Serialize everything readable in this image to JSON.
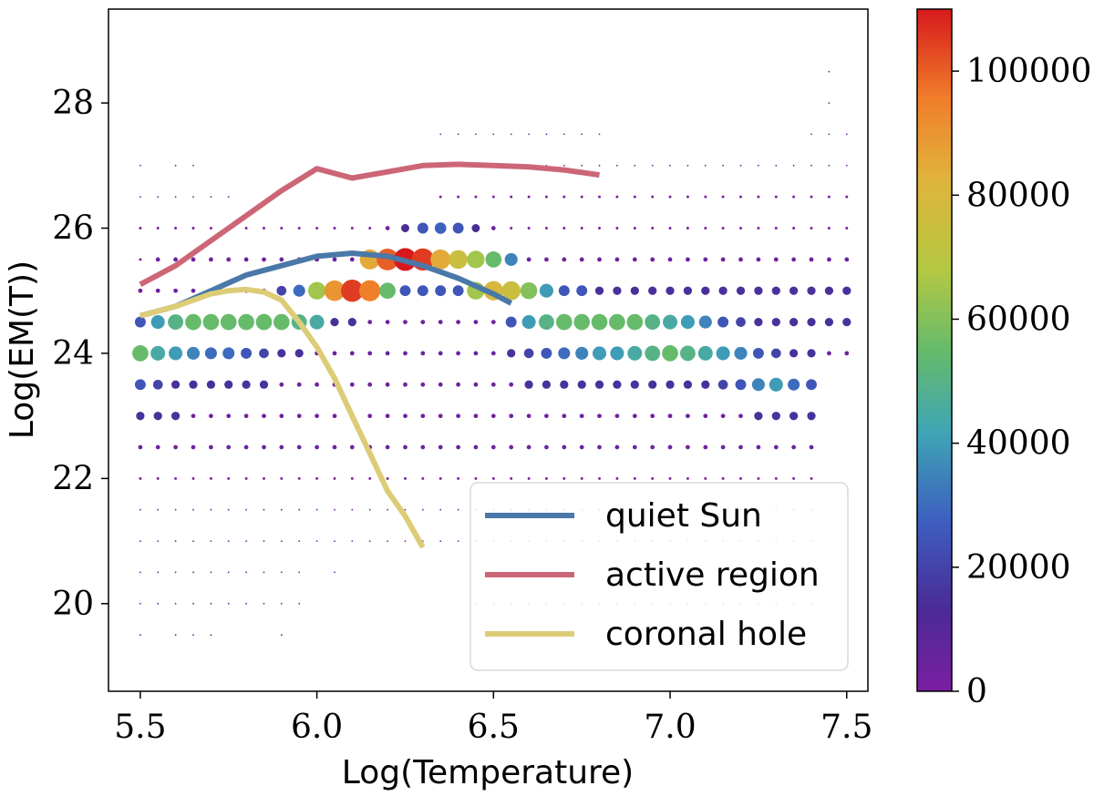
{
  "chart_data": {
    "type": "scatter",
    "title": "",
    "xlabel": "Log(Temperature)",
    "ylabel": "Log(EM(T))",
    "xlim": [
      5.41,
      7.56
    ],
    "ylim": [
      18.6,
      29.5
    ],
    "xticks": [
      5.5,
      6.0,
      6.5,
      7.0,
      7.5
    ],
    "yticks": [
      20,
      22,
      24,
      26,
      28
    ],
    "xtick_labels": [
      "5.5",
      "6.0",
      "6.5",
      "7.0",
      "7.5"
    ],
    "ytick_labels": [
      "20",
      "22",
      "24",
      "26",
      "28"
    ],
    "colorbar": {
      "range": [
        0,
        110000
      ],
      "ticks": [
        0,
        20000,
        40000,
        60000,
        80000,
        100000
      ],
      "tick_labels": [
        "0",
        "20000",
        "40000",
        "60000",
        "80000",
        "100000"
      ],
      "colormap": "Spectral_r"
    },
    "x_grid": [
      5.5,
      5.55,
      5.6,
      5.65,
      5.7,
      5.75,
      5.8,
      5.85,
      5.9,
      5.95,
      6.0,
      6.05,
      6.1,
      6.15,
      6.2,
      6.25,
      6.3,
      6.35,
      6.4,
      6.45,
      6.5,
      6.55,
      6.6,
      6.65,
      6.7,
      6.75,
      6.8,
      6.85,
      6.9,
      6.95,
      7.0,
      7.05,
      7.1,
      7.15,
      7.2,
      7.25,
      7.3,
      7.35,
      7.4,
      7.45,
      7.5
    ],
    "count_rows": [
      {
        "y": 29.0,
        "v": [
          0,
          0,
          0,
          0,
          0,
          0,
          0,
          0,
          0,
          0,
          0,
          0,
          0,
          0,
          0,
          0,
          0,
          0,
          0,
          0,
          0,
          0,
          0,
          0,
          0,
          0,
          0,
          0,
          0,
          0,
          0,
          0,
          0,
          0,
          0,
          0,
          0,
          0,
          0,
          0,
          0
        ]
      },
      {
        "y": 28.5,
        "v": [
          0,
          0,
          0,
          0,
          0,
          0,
          0,
          0,
          0,
          0,
          0,
          0,
          0,
          0,
          0,
          0,
          0,
          0,
          0,
          0,
          0,
          0,
          0,
          0,
          0,
          0,
          0,
          0,
          0,
          0,
          0,
          0,
          0,
          0,
          0,
          0,
          0,
          0,
          0,
          20,
          0
        ]
      },
      {
        "y": 28.0,
        "v": [
          0,
          0,
          0,
          0,
          0,
          0,
          0,
          0,
          0,
          0,
          0,
          0,
          0,
          0,
          0,
          0,
          0,
          0,
          0,
          0,
          0,
          0,
          0,
          0,
          0,
          0,
          0,
          0,
          0,
          0,
          0,
          0,
          0,
          0,
          0,
          0,
          0,
          0,
          0,
          20,
          0
        ]
      },
      {
        "y": 27.5,
        "v": [
          0,
          0,
          0,
          0,
          0,
          0,
          0,
          0,
          0,
          0,
          0,
          0,
          0,
          0,
          0,
          0,
          0,
          20,
          20,
          20,
          20,
          20,
          20,
          20,
          20,
          20,
          20,
          0,
          0,
          0,
          0,
          0,
          0,
          0,
          0,
          0,
          0,
          0,
          20,
          20,
          20
        ]
      },
      {
        "y": 27.0,
        "v": [
          20,
          0,
          20,
          20,
          0,
          0,
          0,
          0,
          0,
          0,
          0,
          0,
          0,
          0,
          0,
          0,
          0,
          150,
          150,
          150,
          150,
          150,
          150,
          150,
          150,
          150,
          150,
          150,
          150,
          150,
          150,
          150,
          150,
          150,
          150,
          150,
          150,
          150,
          150,
          150,
          150
        ]
      },
      {
        "y": 26.5,
        "v": [
          150,
          150,
          150,
          150,
          150,
          20,
          0,
          0,
          0,
          0,
          0,
          0,
          0,
          0,
          0,
          0,
          0,
          1500,
          1500,
          1500,
          1500,
          1500,
          1500,
          1500,
          1500,
          1500,
          1500,
          1500,
          1500,
          1500,
          1500,
          1500,
          1500,
          1500,
          1500,
          1500,
          1500,
          1500,
          1500,
          1500,
          1500
        ]
      },
      {
        "y": 26.0,
        "v": [
          1500,
          1500,
          1500,
          1500,
          1500,
          1500,
          1500,
          1500,
          1500,
          1500,
          1500,
          1500,
          1500,
          1500,
          4000,
          14000,
          25000,
          28000,
          25000,
          14000,
          4000,
          1500,
          1500,
          1500,
          1500,
          1500,
          1500,
          1500,
          1500,
          1500,
          1500,
          1500,
          1500,
          1500,
          1500,
          1500,
          1500,
          1500,
          1500,
          1500,
          1500
        ]
      },
      {
        "y": 25.5,
        "v": [
          1500,
          4000,
          4000,
          4000,
          4000,
          4000,
          4000,
          4000,
          4000,
          4000,
          4000,
          4000,
          4000,
          85000,
          100000,
          110000,
          105000,
          85000,
          75000,
          65000,
          55000,
          35000,
          4000,
          4000,
          4000,
          4000,
          4000,
          4000,
          4000,
          4000,
          4000,
          4000,
          4000,
          4000,
          4000,
          4000,
          4000,
          4000,
          4000,
          4000,
          4000
        ]
      },
      {
        "y": 25.0,
        "v": [
          4000,
          4000,
          4000,
          4000,
          4000,
          4000,
          4000,
          4000,
          20000,
          30000,
          65000,
          90000,
          105000,
          95000,
          55000,
          25000,
          25000,
          25000,
          25000,
          65000,
          80000,
          75000,
          60000,
          40000,
          25000,
          25000,
          15000,
          15000,
          15000,
          15000,
          15000,
          15000,
          15000,
          15000,
          15000,
          15000,
          15000,
          15000,
          15000,
          15000,
          15000
        ]
      },
      {
        "y": 24.5,
        "v": [
          25000,
          40000,
          50000,
          55000,
          55000,
          55000,
          55000,
          55000,
          55000,
          50000,
          45000,
          15000,
          15000,
          4000,
          4000,
          4000,
          4000,
          4000,
          4000,
          4000,
          4000,
          25000,
          40000,
          50000,
          55000,
          55000,
          55000,
          55000,
          55000,
          50000,
          45000,
          40000,
          35000,
          25000,
          20000,
          15000,
          15000,
          15000,
          15000,
          15000,
          15000
        ]
      },
      {
        "y": 24.0,
        "v": [
          55000,
          45000,
          40000,
          35000,
          30000,
          30000,
          25000,
          20000,
          15000,
          15000,
          4000,
          4000,
          4000,
          4000,
          4000,
          4000,
          4000,
          4000,
          4000,
          4000,
          4000,
          15000,
          20000,
          25000,
          30000,
          35000,
          40000,
          40000,
          45000,
          50000,
          55000,
          50000,
          45000,
          40000,
          35000,
          25000,
          20000,
          15000,
          15000,
          4000,
          4000
        ]
      },
      {
        "y": 23.5,
        "v": [
          25000,
          20000,
          15000,
          15000,
          15000,
          15000,
          15000,
          15000,
          4000,
          4000,
          4000,
          4000,
          4000,
          4000,
          4000,
          4000,
          4000,
          4000,
          4000,
          4000,
          4000,
          4000,
          15000,
          15000,
          15000,
          15000,
          15000,
          15000,
          15000,
          15000,
          15000,
          15000,
          15000,
          20000,
          25000,
          35000,
          40000,
          30000,
          25000,
          0,
          0
        ]
      },
      {
        "y": 23.0,
        "v": [
          15000,
          15000,
          15000,
          4000,
          4000,
          4000,
          4000,
          4000,
          4000,
          4000,
          4000,
          4000,
          4000,
          4000,
          4000,
          4000,
          4000,
          4000,
          4000,
          4000,
          4000,
          4000,
          4000,
          4000,
          4000,
          4000,
          4000,
          4000,
          4000,
          4000,
          4000,
          4000,
          4000,
          4000,
          4000,
          15000,
          15000,
          15000,
          15000,
          0,
          0
        ]
      },
      {
        "y": 22.5,
        "v": [
          4000,
          4000,
          4000,
          4000,
          4000,
          4000,
          4000,
          4000,
          4000,
          4000,
          4000,
          4000,
          4000,
          4000,
          4000,
          4000,
          4000,
          4000,
          4000,
          4000,
          4000,
          4000,
          4000,
          4000,
          4000,
          4000,
          4000,
          4000,
          4000,
          4000,
          4000,
          4000,
          4000,
          4000,
          4000,
          4000,
          4000,
          4000,
          4000,
          0,
          0
        ]
      },
      {
        "y": 22.0,
        "v": [
          1500,
          1500,
          1500,
          1500,
          1500,
          1500,
          1500,
          1500,
          1500,
          1500,
          1500,
          1500,
          1500,
          1500,
          1500,
          1500,
          1500,
          1500,
          1500,
          1500,
          1500,
          1500,
          1500,
          1500,
          1500,
          1500,
          1500,
          1500,
          1500,
          1500,
          1500,
          1500,
          1500,
          1500,
          1500,
          1500,
          1500,
          1500,
          1500,
          0,
          0
        ]
      },
      {
        "y": 21.5,
        "v": [
          150,
          150,
          150,
          150,
          150,
          150,
          150,
          150,
          150,
          150,
          150,
          150,
          150,
          150,
          150,
          150,
          150,
          150,
          150,
          150,
          150,
          150,
          150,
          150,
          150,
          150,
          150,
          150,
          150,
          150,
          150,
          150,
          150,
          150,
          150,
          150,
          150,
          150,
          150,
          0,
          0
        ]
      },
      {
        "y": 21.0,
        "v": [
          150,
          150,
          150,
          150,
          150,
          150,
          150,
          150,
          150,
          150,
          150,
          150,
          150,
          150,
          150,
          150,
          150,
          150,
          150,
          150,
          150,
          150,
          150,
          150,
          150,
          150,
          150,
          150,
          150,
          150,
          150,
          150,
          150,
          150,
          150,
          150,
          150,
          150,
          150,
          0,
          0
        ]
      },
      {
        "y": 20.5,
        "v": [
          20,
          20,
          20,
          20,
          20,
          20,
          20,
          20,
          20,
          20,
          0,
          20,
          0,
          0,
          0,
          0,
          0,
          0,
          0,
          0,
          0,
          0,
          0,
          0,
          0,
          0,
          0,
          0,
          0,
          0,
          0,
          0,
          0,
          0,
          0,
          0,
          0,
          0,
          0,
          0,
          0
        ]
      },
      {
        "y": 20.0,
        "v": [
          20,
          20,
          20,
          20,
          20,
          20,
          20,
          20,
          20,
          20,
          0,
          0,
          0,
          0,
          0,
          0,
          0,
          0,
          0,
          20,
          20,
          20,
          20,
          20,
          20,
          20,
          20,
          20,
          20,
          20,
          20,
          20,
          20,
          20,
          20,
          20,
          20,
          20,
          20,
          0,
          0
        ]
      },
      {
        "y": 19.5,
        "v": [
          20,
          0,
          20,
          20,
          20,
          0,
          0,
          0,
          20,
          0,
          0,
          0,
          0,
          0,
          0,
          0,
          0,
          0,
          0,
          0,
          0,
          0,
          0,
          0,
          0,
          0,
          0,
          0,
          0,
          0,
          0,
          0,
          0,
          0,
          0,
          0,
          0,
          0,
          0,
          0,
          0
        ]
      }
    ],
    "series": [
      {
        "name": "quiet Sun",
        "color": "#4a78a8",
        "x": [
          5.5,
          5.6,
          5.7,
          5.8,
          5.9,
          6.0,
          6.1,
          6.2,
          6.3,
          6.4,
          6.5,
          6.55
        ],
        "y": [
          24.6,
          24.75,
          25.0,
          25.25,
          25.4,
          25.55,
          25.6,
          25.55,
          25.4,
          25.2,
          24.95,
          24.8
        ]
      },
      {
        "name": "active region",
        "color": "#cc6677",
        "x": [
          5.5,
          5.6,
          5.7,
          5.8,
          5.9,
          6.0,
          6.1,
          6.2,
          6.3,
          6.4,
          6.5,
          6.6,
          6.7,
          6.8
        ],
        "y": [
          25.1,
          25.4,
          25.8,
          26.2,
          26.6,
          26.95,
          26.8,
          26.9,
          27.0,
          27.02,
          27.0,
          26.98,
          26.93,
          26.85
        ]
      },
      {
        "name": "coronal hole",
        "color": "#ddcc77",
        "x": [
          5.5,
          5.6,
          5.7,
          5.75,
          5.8,
          5.85,
          5.9,
          5.95,
          6.0,
          6.05,
          6.1,
          6.15,
          6.2,
          6.25,
          6.3
        ],
        "y": [
          24.6,
          24.75,
          24.95,
          25.0,
          25.02,
          24.98,
          24.85,
          24.5,
          24.1,
          23.6,
          23.0,
          22.4,
          21.8,
          21.4,
          20.9
        ]
      }
    ],
    "legend": {
      "location": "lower-right",
      "entries": [
        "quiet Sun",
        "active region",
        "coronal hole"
      ]
    }
  }
}
